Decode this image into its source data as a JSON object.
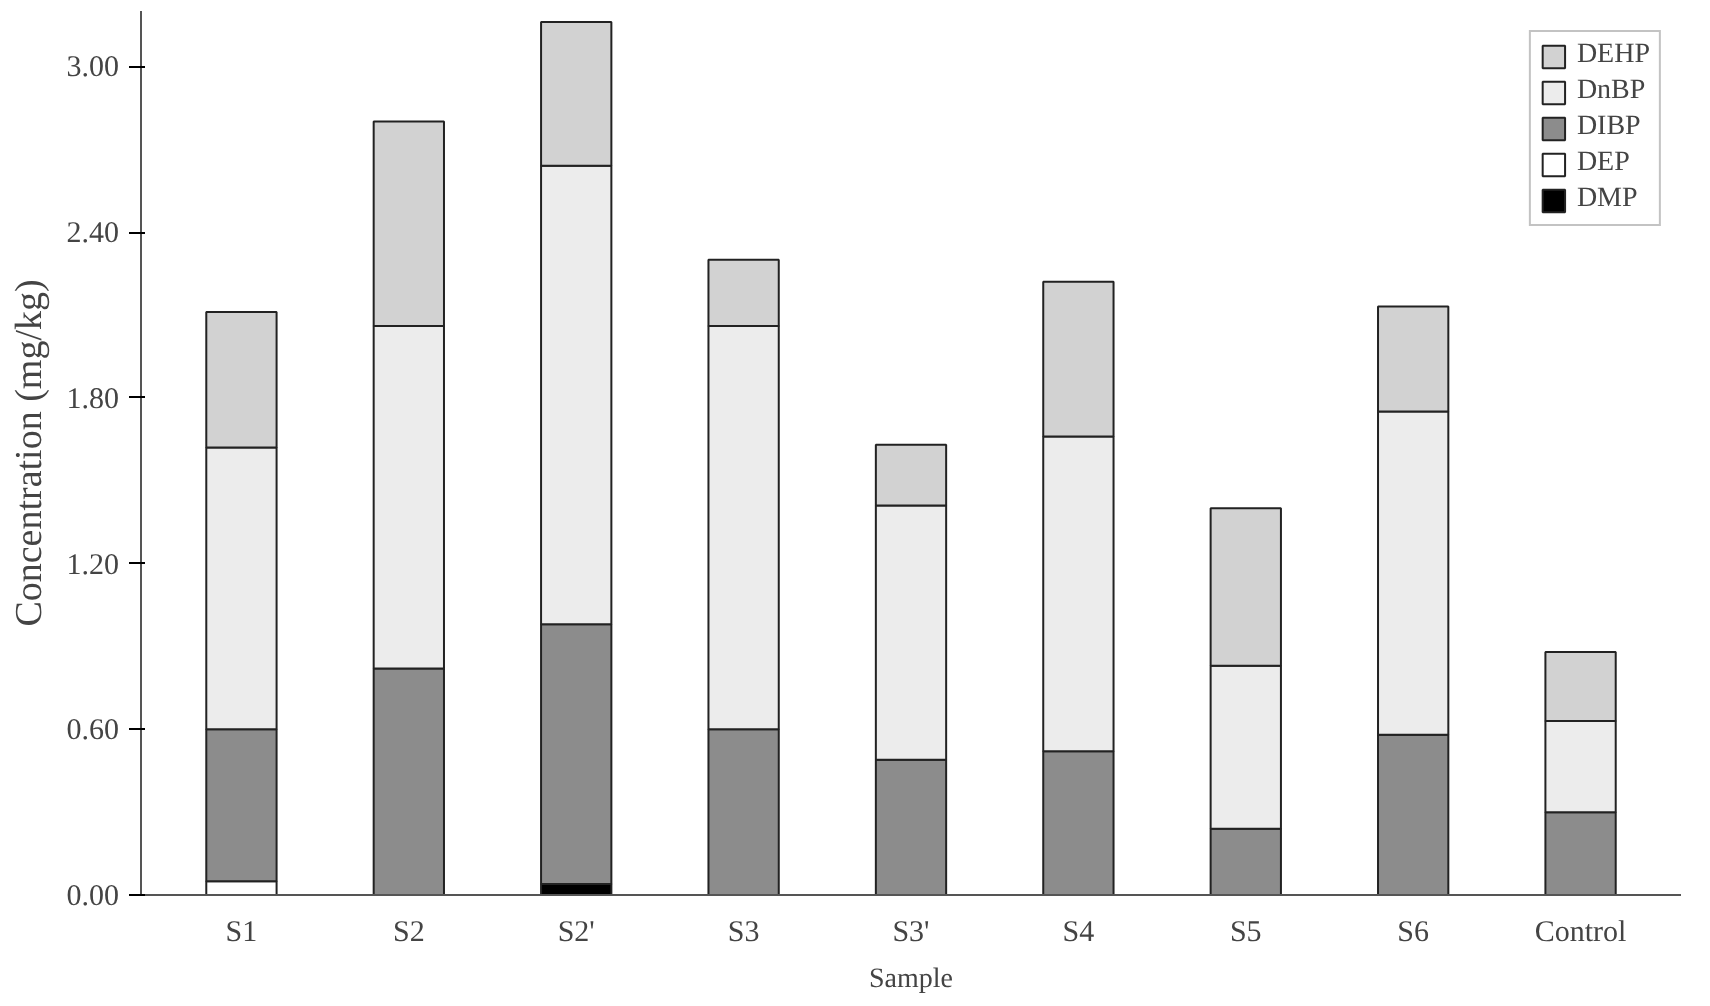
{
  "chart_data": {
    "type": "bar",
    "stacked": true,
    "xlabel": "Sample",
    "ylabel": "Concentration (mg/kg)",
    "categories": [
      "S1",
      "S2",
      "S2'",
      "S3",
      "S3'",
      "S4",
      "S5",
      "S6",
      "Control"
    ],
    "series": [
      {
        "name": "DMP",
        "color": "#000000",
        "values": [
          0,
          0,
          0.04,
          0,
          0,
          0,
          0,
          0,
          0
        ]
      },
      {
        "name": "DEP",
        "color": "#ffffff",
        "values": [
          0.05,
          0,
          0,
          0,
          0,
          0,
          0,
          0,
          0
        ]
      },
      {
        "name": "DIBP",
        "color": "#8c8c8c",
        "values": [
          0.55,
          0.82,
          0.94,
          0.6,
          0.49,
          0.52,
          0.24,
          0.58,
          0.3
        ]
      },
      {
        "name": "DnBP",
        "color": "#ececec",
        "values": [
          1.02,
          1.24,
          1.66,
          1.46,
          0.92,
          1.14,
          0.59,
          1.17,
          0.33
        ]
      },
      {
        "name": "DEHP",
        "color": "#d2d2d2",
        "values": [
          0.49,
          0.74,
          0.52,
          0.24,
          0.22,
          0.56,
          0.57,
          0.38,
          0.25
        ]
      }
    ],
    "ylim": [
      0,
      3.2
    ],
    "yticks": [
      {
        "value": 0,
        "label": "0.00"
      },
      {
        "value": 0.6,
        "label": "0.60"
      },
      {
        "value": 1.2,
        "label": "1.20"
      },
      {
        "value": 1.8,
        "label": "1.80"
      },
      {
        "value": 2.4,
        "label": "2.40"
      },
      {
        "value": 3.0,
        "label": "3.00"
      }
    ],
    "grid": false,
    "legend": "top right"
  }
}
